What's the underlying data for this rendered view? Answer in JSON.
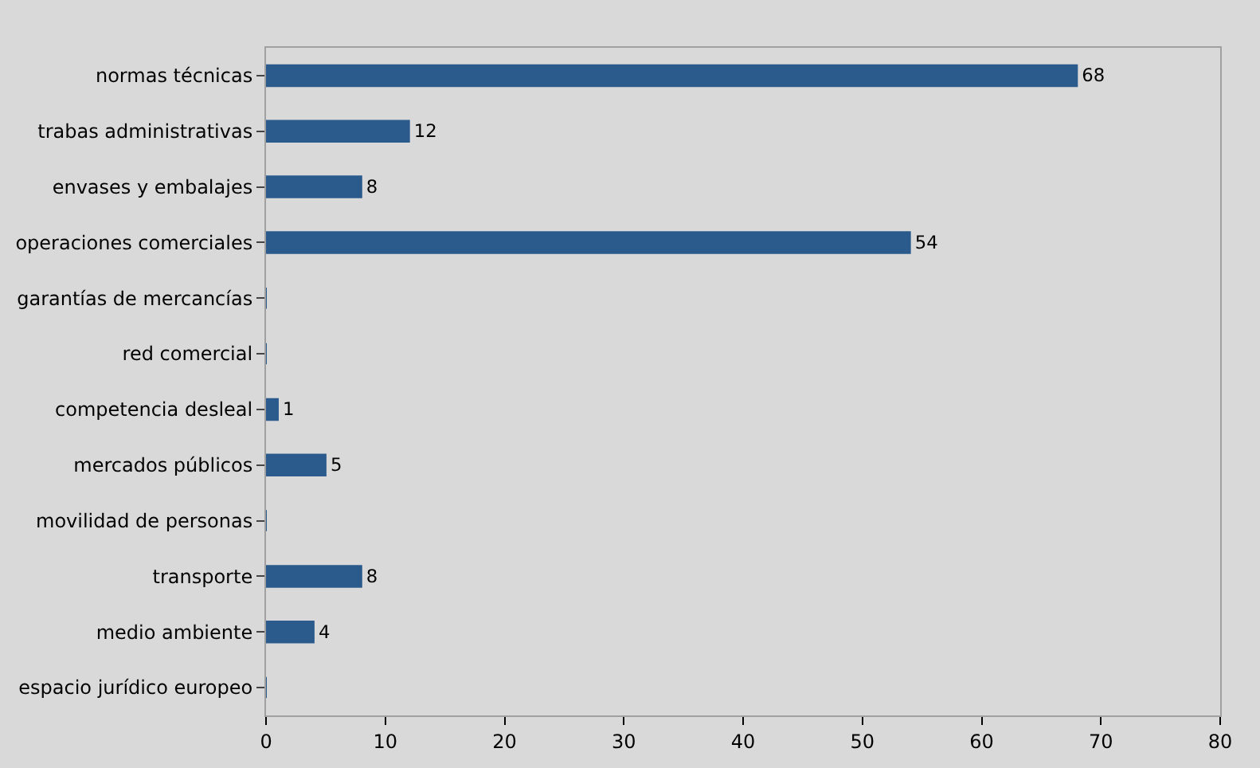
{
  "chart_data": {
    "type": "bar",
    "orientation": "horizontal",
    "categories": [
      "normas técnicas",
      "trabas administrativas",
      "envases y embalajes",
      "operaciones comerciales",
      "garantías de mercancías",
      "red comercial",
      "competencia desleal",
      "mercados públicos",
      "movilidad de personas",
      "transporte",
      "medio ambiente",
      "espacio jurídico europeo"
    ],
    "values": [
      68,
      12,
      8,
      54,
      0,
      0,
      1,
      5,
      0,
      8,
      4,
      0
    ],
    "value_labels": [
      "68",
      "12",
      "8",
      "54",
      null,
      null,
      "1",
      "5",
      null,
      "8",
      "4",
      null
    ],
    "color": "#2b5a8c",
    "xlim": [
      0,
      80
    ],
    "xticks": [
      0,
      10,
      20,
      30,
      40,
      50,
      60,
      70,
      80
    ],
    "grid": false,
    "legend": false
  }
}
